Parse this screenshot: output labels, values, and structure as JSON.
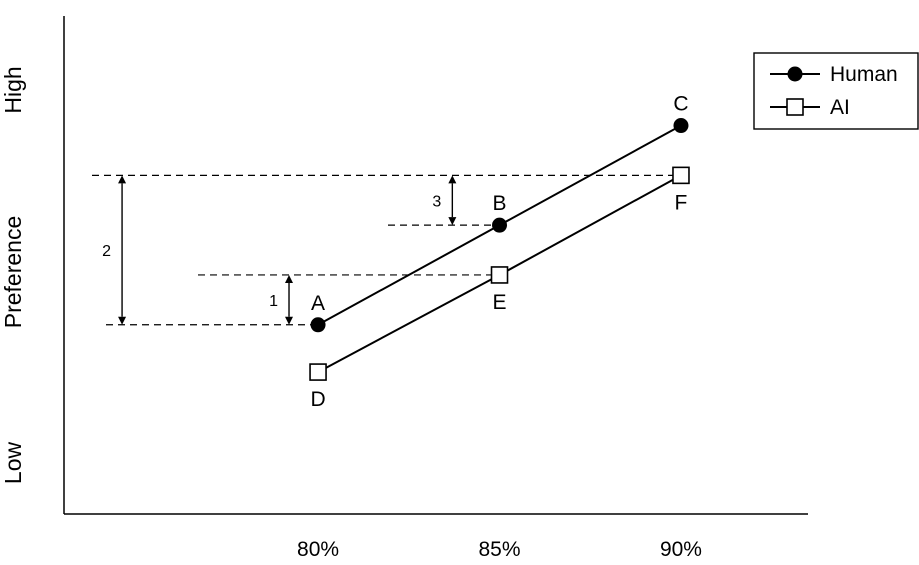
{
  "chart_data": {
    "type": "line",
    "title": "",
    "xlabel": "",
    "ylabel": "Preference",
    "y_high_label": "High",
    "y_low_label": "Low",
    "x": [
      80,
      85,
      90
    ],
    "x_tick_labels": [
      "80%",
      "85%",
      "90%"
    ],
    "xlim": [
      73,
      93.5
    ],
    "ylim": [
      0,
      100
    ],
    "grid": false,
    "legend_position": "top-right",
    "series": [
      {
        "name": "Human",
        "marker": "filled-circle",
        "values": [
          38,
          58,
          78
        ],
        "point_labels": [
          "A",
          "B",
          "C"
        ]
      },
      {
        "name": "AI",
        "marker": "open-square",
        "values": [
          28.5,
          48,
          68
        ],
        "point_labels": [
          "D",
          "E",
          "F"
        ]
      }
    ],
    "annotations": [
      {
        "label": "1",
        "from": 38,
        "to": 48,
        "x": 79.2
      },
      {
        "label": "2",
        "from": 38,
        "to": 68,
        "x": 74.6
      },
      {
        "label": "3",
        "from": 58,
        "to": 68,
        "x": 83.7
      }
    ],
    "colors": {
      "line": "#000000",
      "background": "#ffffff"
    }
  }
}
